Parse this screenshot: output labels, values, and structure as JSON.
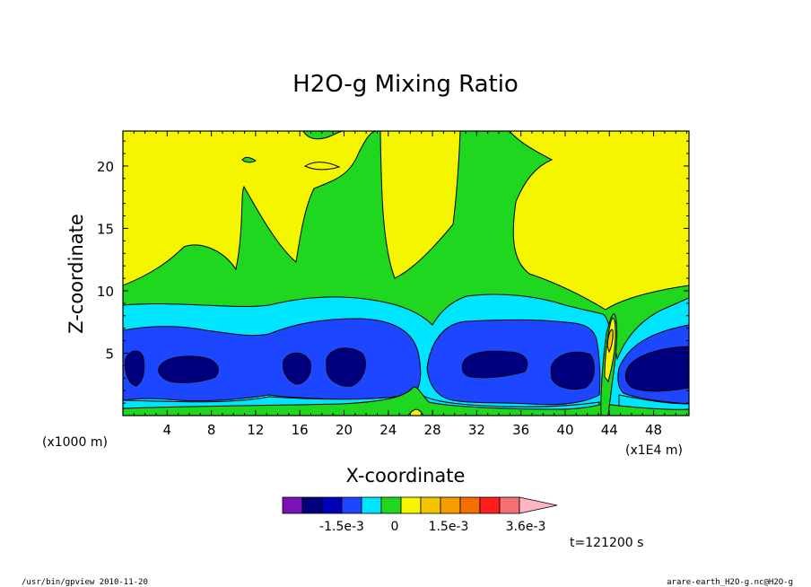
{
  "chart_data": {
    "type": "heatmap",
    "title": "H2O-g Mixing Ratio",
    "xlabel": "X-coordinate",
    "ylabel": "Z-coordinate",
    "x_unit_left": "(x1000 m)",
    "x_unit_right": "(x1E4 m)",
    "xlim": [
      0,
      51.2
    ],
    "ylim": [
      0,
      22.8
    ],
    "x_ticks": [
      "4",
      "8",
      "12",
      "16",
      "20",
      "24",
      "28",
      "32",
      "36",
      "40",
      "44",
      "48"
    ],
    "x_tick_values": [
      4,
      8,
      12,
      16,
      20,
      24,
      28,
      32,
      36,
      40,
      44,
      48
    ],
    "y_ticks": [
      "5",
      "10",
      "15",
      "20"
    ],
    "y_tick_values": [
      5,
      10,
      15,
      20
    ],
    "time_label": "t=121200 s",
    "colorbar": {
      "colors": [
        "#7a12b8",
        "#00007f",
        "#0000b8",
        "#1c46ff",
        "#00e5ff",
        "#1ed71e",
        "#f5f500",
        "#f5c400",
        "#f59d00",
        "#f56e00",
        "#ff1e1e",
        "#f57070",
        "#ffb6c1"
      ],
      "labels": [
        "-1.5e-3",
        "0",
        "1.5e-3",
        "3.6e-3"
      ]
    },
    "level_colors": {
      "L1": "#1ed71e",
      "L2": "#00e5ff",
      "L3": "#1c46ff",
      "L4": "#00007f",
      "top": "#f5f500",
      "peak": "#f5c400",
      "peak2": "#f59d00"
    }
  },
  "footer": {
    "program": "/usr/bin/gpview   2010-11-20",
    "source": "arare-earth_H2O-g.nc@H2O-g"
  }
}
